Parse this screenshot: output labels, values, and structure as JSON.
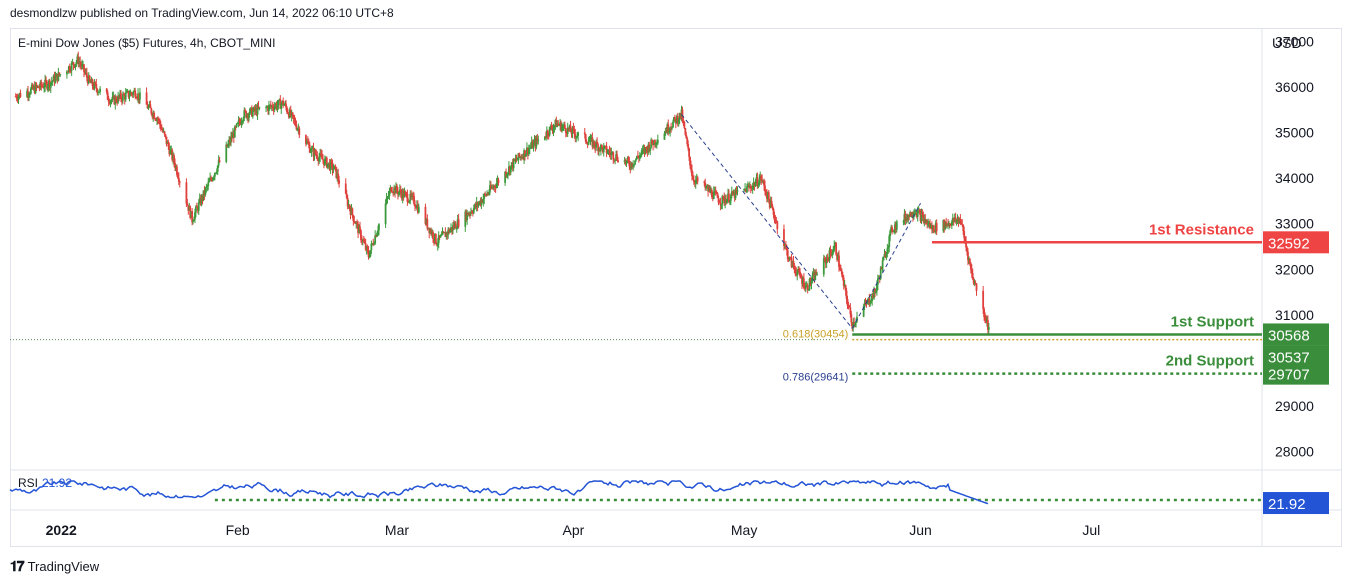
{
  "header": {
    "publish_line": "desmondlzw published on TradingView.com, Jun 14, 2022 06:10 UTC+8",
    "symbol_line": "E-mini Dow Jones ($5) Futures, 4h, CBOT_MINI"
  },
  "footer": {
    "logo_glyph": "𝟏𝟕",
    "brand": "TradingView"
  },
  "colors": {
    "up": "#26a69a",
    "down": "#ef5350",
    "candle_up": "#3c9a3c",
    "candle_down": "#e0403c",
    "resistance": "#ef4444",
    "support": "#3a8d3a",
    "rsi": "#2454d6",
    "fib": "#2a3f8f",
    "fib_gold": "#c9a227"
  },
  "chart_data": {
    "type": "candlestick",
    "title": "E-mini Dow Jones ($5) Futures, 4h, CBOT_MINI",
    "currency": "USD",
    "ylim": [
      27700,
      37300
    ],
    "y_ticks": [
      28000,
      29000,
      30000,
      31000,
      32000,
      33000,
      34000,
      35000,
      36000,
      37000
    ],
    "y_tick_labels": [
      "28000",
      "29000",
      "30000",
      "31000",
      "32000",
      "33000",
      "34000",
      "35000",
      "36000",
      "37000"
    ],
    "x_labels": [
      "2022",
      "Feb",
      "Mar",
      "Apr",
      "May",
      "Jun",
      "Jul"
    ],
    "price_path": [
      {
        "date": "2021-12-24",
        "close": 35800
      },
      {
        "date": "2021-12-30",
        "close": 36100
      },
      {
        "date": "2022-01-04",
        "close": 36600
      },
      {
        "date": "2022-01-06",
        "close": 36100
      },
      {
        "date": "2022-01-10",
        "close": 35700
      },
      {
        "date": "2022-01-14",
        "close": 35900
      },
      {
        "date": "2022-01-18",
        "close": 35300
      },
      {
        "date": "2022-01-21",
        "close": 34300
      },
      {
        "date": "2022-01-24",
        "close": 33100
      },
      {
        "date": "2022-01-27",
        "close": 33900
      },
      {
        "date": "2022-02-02",
        "close": 35400
      },
      {
        "date": "2022-02-09",
        "close": 35650
      },
      {
        "date": "2022-02-14",
        "close": 34600
      },
      {
        "date": "2022-02-18",
        "close": 34200
      },
      {
        "date": "2022-02-24",
        "close": 32300
      },
      {
        "date": "2022-02-28",
        "close": 33800
      },
      {
        "date": "2022-03-04",
        "close": 33500
      },
      {
        "date": "2022-03-08",
        "close": 32600
      },
      {
        "date": "2022-03-15",
        "close": 33400
      },
      {
        "date": "2022-03-22",
        "close": 34400
      },
      {
        "date": "2022-03-29",
        "close": 35200
      },
      {
        "date": "2022-04-04",
        "close": 34800
      },
      {
        "date": "2022-04-11",
        "close": 34300
      },
      {
        "date": "2022-04-20",
        "close": 35400
      },
      {
        "date": "2022-04-22",
        "close": 34000
      },
      {
        "date": "2022-04-27",
        "close": 33500
      },
      {
        "date": "2022-05-02",
        "close": 33800
      },
      {
        "date": "2022-05-04",
        "close": 34000
      },
      {
        "date": "2022-05-09",
        "close": 32200
      },
      {
        "date": "2022-05-12",
        "close": 31600
      },
      {
        "date": "2022-05-17",
        "close": 32500
      },
      {
        "date": "2022-05-20",
        "close": 30800
      },
      {
        "date": "2022-05-24",
        "close": 31500
      },
      {
        "date": "2022-05-27",
        "close": 32900
      },
      {
        "date": "2022-05-31",
        "close": 33300
      },
      {
        "date": "2022-06-03",
        "close": 32900
      },
      {
        "date": "2022-06-08",
        "close": 33100
      },
      {
        "date": "2022-06-10",
        "close": 31900
      },
      {
        "date": "2022-06-13",
        "close": 30700
      }
    ],
    "levels": [
      {
        "name": "1st Resistance",
        "value": 32592,
        "label": "32592",
        "kind": "resistance"
      },
      {
        "name": "1st Support",
        "value": 30568,
        "label": "30568",
        "kind": "support"
      },
      {
        "name": "2nd Support",
        "value": 29707,
        "label": "29707",
        "kind": "support"
      }
    ],
    "last_price": {
      "value": 30537,
      "label": "30537"
    },
    "fib_levels": [
      {
        "label": "0.618(30454)",
        "value": 30454
      },
      {
        "label": "0.786(29641)",
        "value": 29641
      }
    ],
    "rsi": {
      "label": "RSI",
      "value": 21.92,
      "value_label": "21.92",
      "ylim": [
        10,
        90
      ],
      "oversold": 30
    },
    "annotation_labels": {
      "resistance_1": "1st Resistance",
      "support_1": "1st Support",
      "support_2": "2nd Support"
    }
  }
}
